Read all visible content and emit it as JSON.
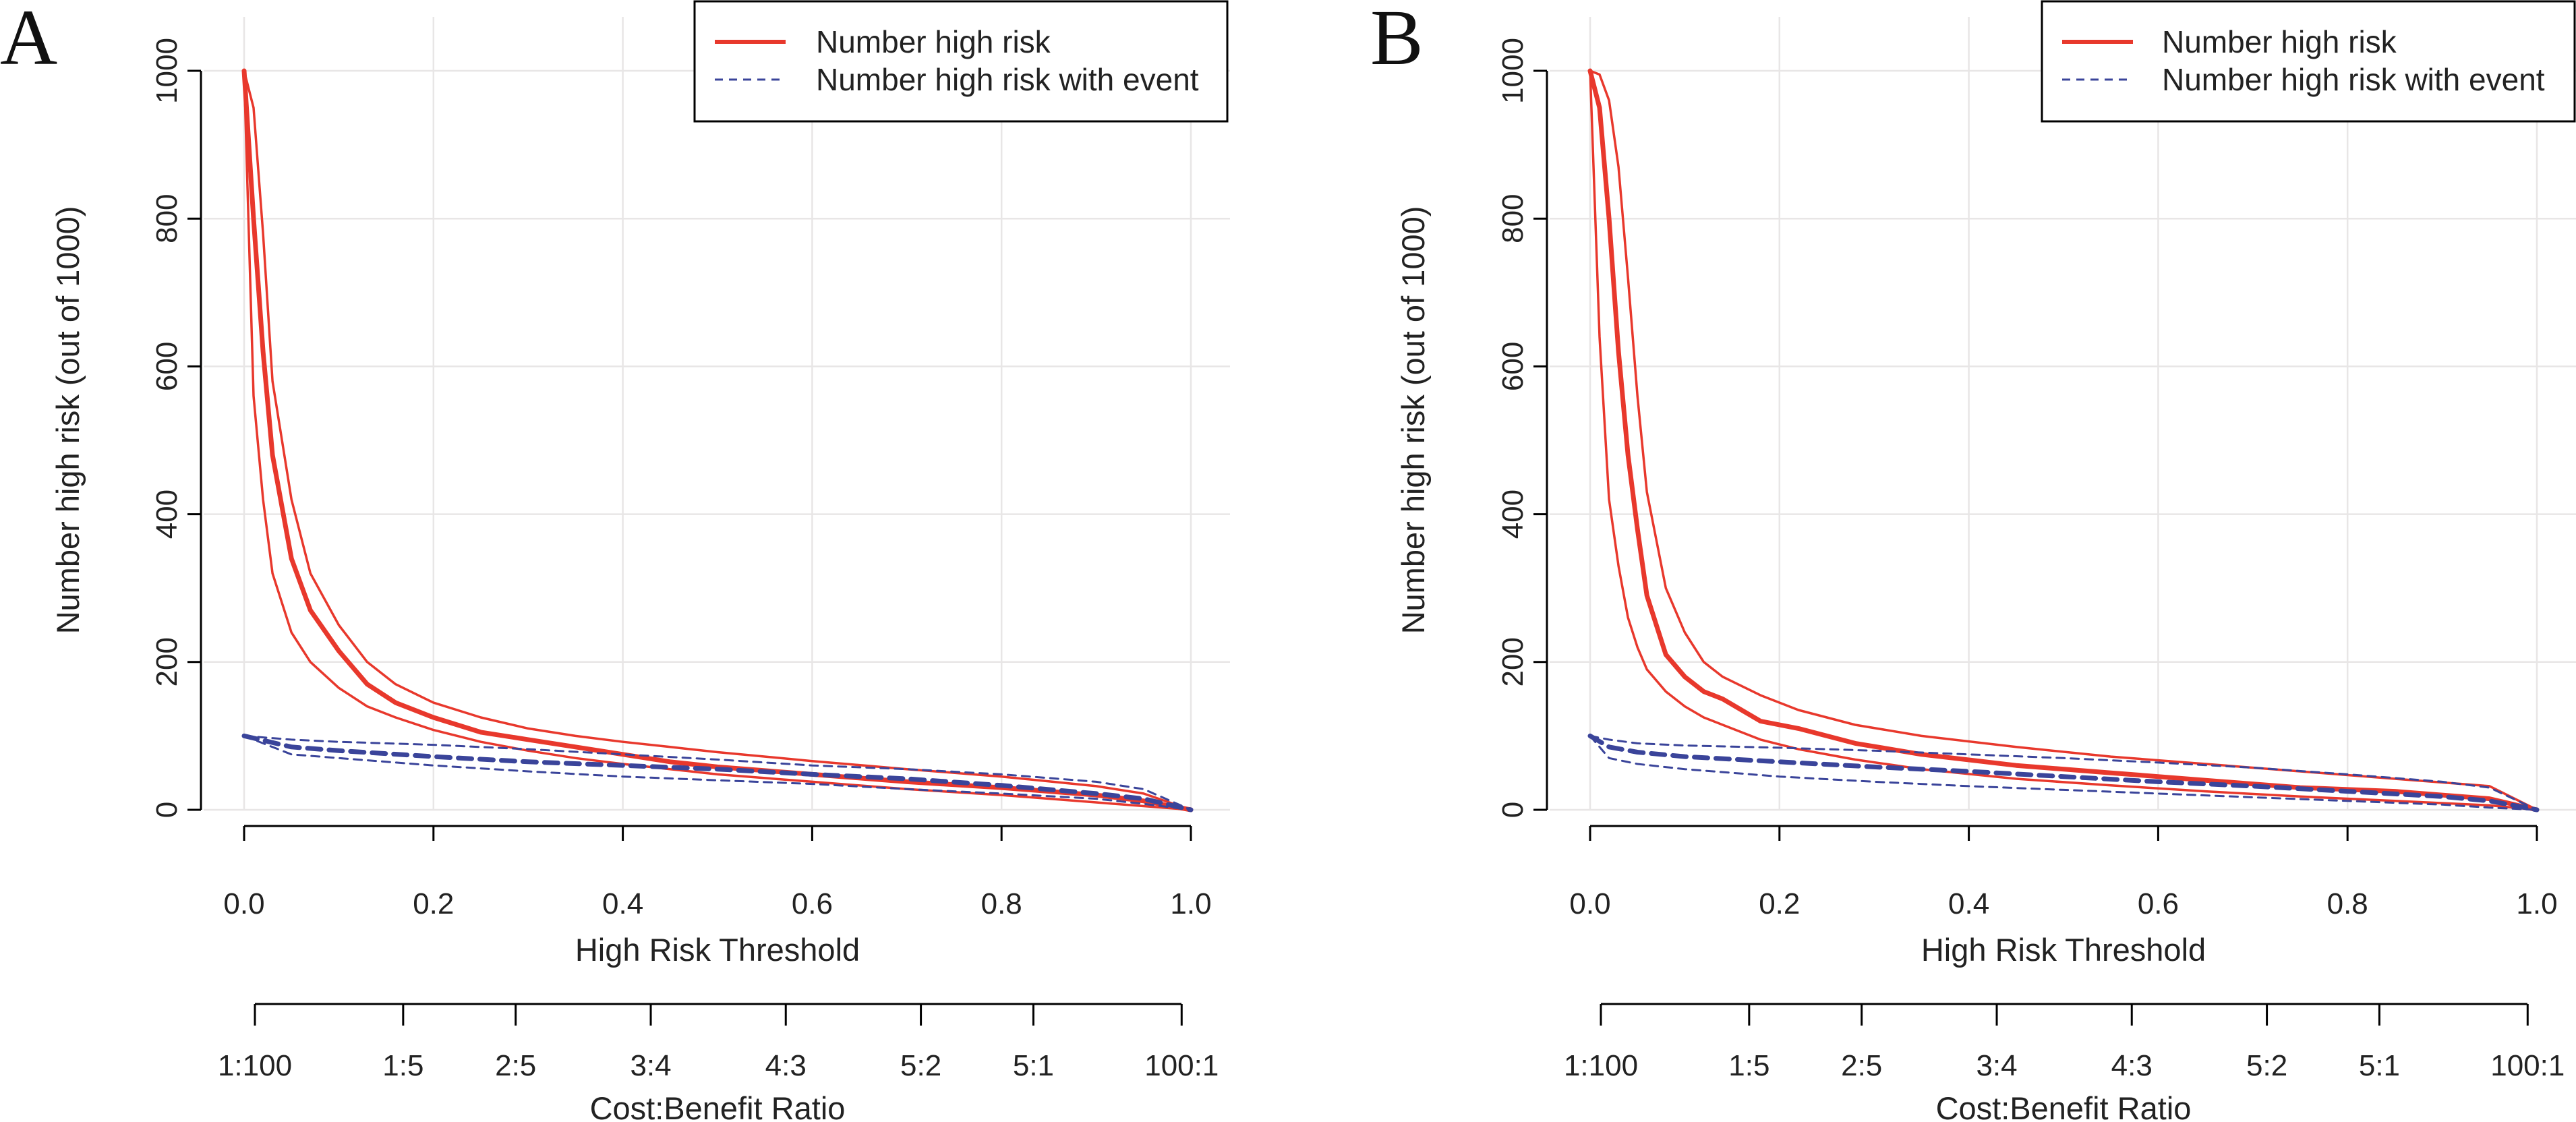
{
  "chart_data": [
    {
      "type": "line",
      "panel": "A",
      "title": "",
      "xlabel": "High Risk Threshold",
      "ylabel": "Number high risk (out of 1000)",
      "xlim": [
        0,
        1
      ],
      "ylim": [
        0,
        1000
      ],
      "x_ticks": [
        0.0,
        0.2,
        0.4,
        0.6,
        0.8,
        1.0
      ],
      "x_tick_labels": [
        "0.0",
        "0.2",
        "0.4",
        "0.6",
        "0.8",
        "1.0"
      ],
      "y_ticks": [
        0,
        200,
        400,
        600,
        800,
        1000
      ],
      "y_tick_labels": [
        "0",
        "200",
        "400",
        "600",
        "800",
        "1000"
      ],
      "grid": true,
      "legend_position": "top-right",
      "legend": [
        {
          "label": "Number high risk",
          "color": "#e8382c",
          "style": "solid"
        },
        {
          "label": "Number high risk with event",
          "color": "#3a449a",
          "style": "dashed"
        }
      ],
      "cost_benefit_axis": {
        "title": "Cost:Benefit Ratio",
        "ticks": [
          {
            "x": 0.0099,
            "label": "1:100"
          },
          {
            "x": 0.1667,
            "label": "1:5"
          },
          {
            "x": 0.2857,
            "label": "2:5"
          },
          {
            "x": 0.4286,
            "label": "3:4"
          },
          {
            "x": 0.5714,
            "label": "4:3"
          },
          {
            "x": 0.7143,
            "label": "5:2"
          },
          {
            "x": 0.8333,
            "label": "5:1"
          },
          {
            "x": 0.9901,
            "label": "100:1"
          }
        ]
      },
      "series": [
        {
          "name": "Number high risk",
          "role": "mean",
          "color": "#e8382c",
          "dashed": false,
          "x": [
            0,
            0.01,
            0.02,
            0.03,
            0.05,
            0.07,
            0.1,
            0.13,
            0.16,
            0.2,
            0.25,
            0.3,
            0.35,
            0.4,
            0.45,
            0.5,
            0.6,
            0.7,
            0.8,
            0.9,
            0.95,
            1.0
          ],
          "y": [
            1000,
            800,
            620,
            480,
            340,
            270,
            215,
            170,
            145,
            125,
            105,
            95,
            85,
            75,
            65,
            58,
            48,
            38,
            30,
            20,
            12,
            0
          ]
        },
        {
          "name": "Number high risk upper",
          "role": "upper",
          "color": "#e8382c",
          "dashed": false,
          "x": [
            0,
            0.01,
            0.02,
            0.03,
            0.05,
            0.07,
            0.1,
            0.13,
            0.16,
            0.2,
            0.25,
            0.3,
            0.35,
            0.4,
            0.45,
            0.5,
            0.6,
            0.7,
            0.8,
            0.9,
            0.95,
            1.0
          ],
          "y": [
            1000,
            950,
            780,
            580,
            420,
            320,
            250,
            200,
            170,
            145,
            125,
            110,
            100,
            92,
            85,
            78,
            66,
            55,
            45,
            32,
            22,
            0
          ]
        },
        {
          "name": "Number high risk lower",
          "role": "lower",
          "color": "#e8382c",
          "dashed": false,
          "x": [
            0,
            0.01,
            0.02,
            0.03,
            0.05,
            0.07,
            0.1,
            0.13,
            0.16,
            0.2,
            0.25,
            0.3,
            0.35,
            0.4,
            0.45,
            0.5,
            0.6,
            0.7,
            0.8,
            0.9,
            0.95,
            1.0
          ],
          "y": [
            1000,
            560,
            420,
            320,
            240,
            200,
            165,
            140,
            125,
            108,
            92,
            80,
            70,
            62,
            55,
            48,
            38,
            28,
            20,
            10,
            5,
            0
          ]
        },
        {
          "name": "Number high risk with event",
          "role": "mean",
          "color": "#3a449a",
          "dashed": true,
          "x": [
            0,
            0.05,
            0.1,
            0.2,
            0.3,
            0.4,
            0.5,
            0.6,
            0.7,
            0.8,
            0.9,
            0.95,
            1.0
          ],
          "y": [
            100,
            85,
            80,
            72,
            65,
            60,
            55,
            48,
            42,
            33,
            22,
            15,
            0
          ]
        },
        {
          "name": "Number high risk with event upper",
          "role": "upper",
          "color": "#3a449a",
          "dashed": true,
          "x": [
            0,
            0.05,
            0.1,
            0.2,
            0.3,
            0.4,
            0.5,
            0.6,
            0.7,
            0.8,
            0.9,
            0.95,
            1.0
          ],
          "y": [
            100,
            95,
            92,
            88,
            82,
            75,
            68,
            60,
            55,
            48,
            38,
            28,
            0
          ]
        },
        {
          "name": "Number high risk with event lower",
          "role": "lower",
          "color": "#3a449a",
          "dashed": true,
          "x": [
            0,
            0.05,
            0.1,
            0.2,
            0.3,
            0.4,
            0.5,
            0.6,
            0.7,
            0.8,
            0.9,
            0.95,
            1.0
          ],
          "y": [
            100,
            75,
            70,
            60,
            52,
            45,
            40,
            35,
            28,
            22,
            15,
            8,
            0
          ]
        }
      ]
    },
    {
      "type": "line",
      "panel": "B",
      "title": "",
      "xlabel": "High Risk Threshold",
      "ylabel": "Number high risk (out of 1000)",
      "xlim": [
        0,
        1
      ],
      "ylim": [
        0,
        1000
      ],
      "x_ticks": [
        0.0,
        0.2,
        0.4,
        0.6,
        0.8,
        1.0
      ],
      "x_tick_labels": [
        "0.0",
        "0.2",
        "0.4",
        "0.6",
        "0.8",
        "1.0"
      ],
      "y_ticks": [
        0,
        200,
        400,
        600,
        800,
        1000
      ],
      "y_tick_labels": [
        "0",
        "200",
        "400",
        "600",
        "800",
        "1000"
      ],
      "grid": true,
      "legend_position": "top-right",
      "legend": [
        {
          "label": "Number high risk",
          "color": "#e8382c",
          "style": "solid"
        },
        {
          "label": "Number high risk with event",
          "color": "#3a449a",
          "style": "dashed"
        }
      ],
      "cost_benefit_axis": {
        "title": "Cost:Benefit Ratio",
        "ticks": [
          {
            "x": 0.0099,
            "label": "1:100"
          },
          {
            "x": 0.1667,
            "label": "1:5"
          },
          {
            "x": 0.2857,
            "label": "2:5"
          },
          {
            "x": 0.4286,
            "label": "3:4"
          },
          {
            "x": 0.5714,
            "label": "4:3"
          },
          {
            "x": 0.7143,
            "label": "5:2"
          },
          {
            "x": 0.8333,
            "label": "5:1"
          },
          {
            "x": 0.9901,
            "label": "100:1"
          }
        ]
      },
      "series": [
        {
          "name": "Number high risk",
          "role": "mean",
          "color": "#e8382c",
          "dashed": false,
          "x": [
            0,
            0.01,
            0.02,
            0.03,
            0.04,
            0.05,
            0.06,
            0.08,
            0.1,
            0.12,
            0.14,
            0.18,
            0.22,
            0.28,
            0.35,
            0.45,
            0.55,
            0.65,
            0.75,
            0.85,
            0.95,
            1.0
          ],
          "y": [
            1000,
            950,
            800,
            620,
            480,
            380,
            290,
            210,
            180,
            160,
            150,
            120,
            110,
            90,
            75,
            60,
            50,
            40,
            30,
            25,
            15,
            0
          ]
        },
        {
          "name": "Number high risk upper",
          "role": "upper",
          "color": "#e8382c",
          "dashed": false,
          "x": [
            0,
            0.01,
            0.02,
            0.03,
            0.04,
            0.05,
            0.06,
            0.08,
            0.1,
            0.12,
            0.14,
            0.18,
            0.22,
            0.28,
            0.35,
            0.45,
            0.55,
            0.65,
            0.75,
            0.85,
            0.95,
            1.0
          ],
          "y": [
            1000,
            995,
            960,
            870,
            720,
            560,
            430,
            300,
            240,
            200,
            180,
            155,
            135,
            115,
            100,
            85,
            72,
            62,
            52,
            42,
            32,
            0
          ]
        },
        {
          "name": "Number high risk lower",
          "role": "lower",
          "color": "#e8382c",
          "dashed": false,
          "x": [
            0,
            0.01,
            0.02,
            0.03,
            0.04,
            0.05,
            0.06,
            0.08,
            0.1,
            0.12,
            0.14,
            0.18,
            0.22,
            0.28,
            0.35,
            0.45,
            0.55,
            0.65,
            0.75,
            0.85,
            0.95,
            1.0
          ],
          "y": [
            1000,
            640,
            420,
            330,
            260,
            220,
            190,
            160,
            140,
            125,
            115,
            95,
            82,
            68,
            55,
            42,
            33,
            25,
            18,
            12,
            6,
            0
          ]
        },
        {
          "name": "Number high risk with event",
          "role": "mean",
          "color": "#3a449a",
          "dashed": true,
          "x": [
            0,
            0.02,
            0.05,
            0.1,
            0.2,
            0.3,
            0.4,
            0.5,
            0.6,
            0.7,
            0.8,
            0.9,
            0.95,
            1.0
          ],
          "y": [
            100,
            85,
            78,
            72,
            65,
            58,
            52,
            45,
            38,
            32,
            25,
            18,
            12,
            0
          ]
        },
        {
          "name": "Number high risk with event upper",
          "role": "upper",
          "color": "#3a449a",
          "dashed": true,
          "x": [
            0,
            0.02,
            0.05,
            0.1,
            0.2,
            0.3,
            0.4,
            0.5,
            0.6,
            0.7,
            0.8,
            0.9,
            0.95,
            1.0
          ],
          "y": [
            100,
            95,
            90,
            87,
            84,
            80,
            75,
            70,
            64,
            57,
            48,
            38,
            30,
            0
          ]
        },
        {
          "name": "Number high risk with event lower",
          "role": "lower",
          "color": "#3a449a",
          "dashed": true,
          "x": [
            0,
            0.02,
            0.05,
            0.1,
            0.2,
            0.3,
            0.4,
            0.5,
            0.6,
            0.7,
            0.8,
            0.9,
            0.95,
            1.0
          ],
          "y": [
            100,
            70,
            62,
            55,
            45,
            38,
            32,
            27,
            22,
            17,
            12,
            7,
            3,
            0
          ]
        }
      ]
    }
  ]
}
